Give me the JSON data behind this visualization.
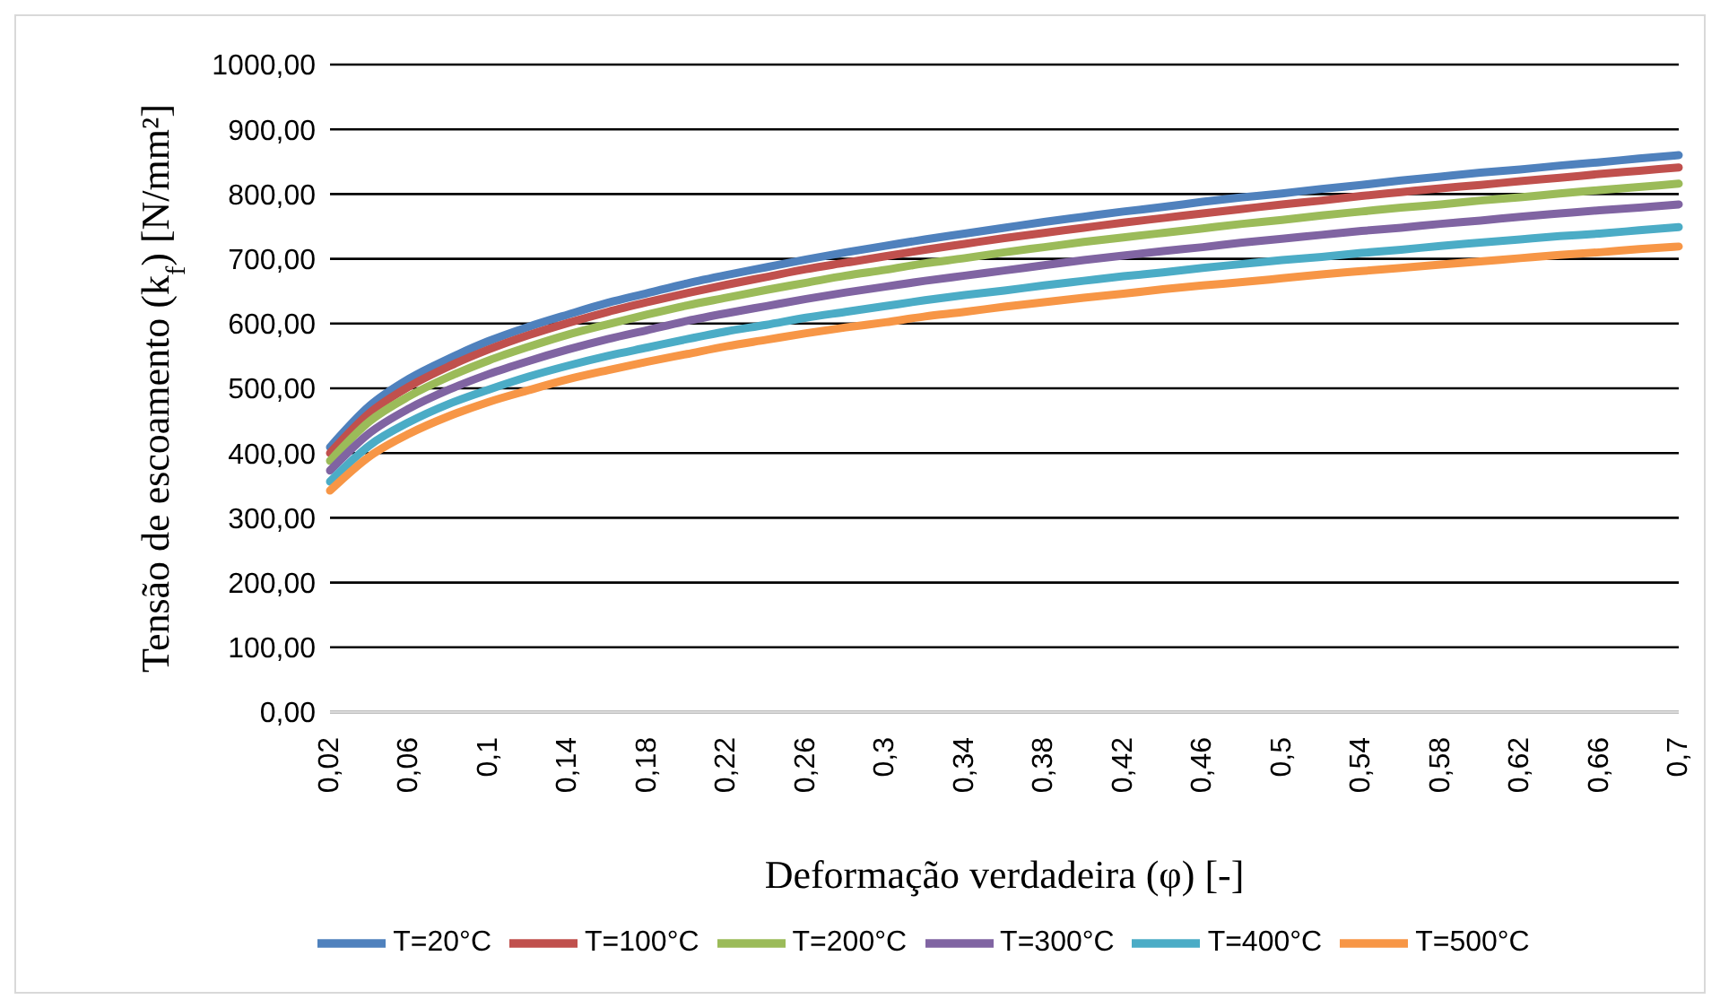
{
  "chart_data": {
    "type": "line",
    "xlabel": "Deformação verdadeira (φ) [-]",
    "ylabel": "Tensão de escoamento (k$_{f}$) [N/mm²]",
    "categories": [
      "0,02",
      null,
      "0,06",
      null,
      "0,1",
      null,
      "0,14",
      null,
      "0,18",
      null,
      "0,22",
      null,
      "0,26",
      null,
      "0,3",
      null,
      "0,34",
      null,
      "0,38",
      null,
      "0,42",
      null,
      "0,46",
      null,
      "0,5",
      null,
      "0,54",
      null,
      "0,58",
      null,
      "0,62",
      null,
      "0,66",
      null,
      "0,7"
    ],
    "series": [
      {
        "name": "T=20°C",
        "color": "#4f81bd",
        "values": [
          409,
          473,
          515,
          546,
          573,
          595,
          614,
          632,
          647,
          662,
          675,
          687,
          699,
          710,
          720,
          730,
          739,
          748,
          757,
          765,
          773,
          780,
          788,
          795,
          801,
          808,
          814,
          821,
          827,
          833,
          838,
          844,
          849,
          855,
          860
        ]
      },
      {
        "name": "T=100°C",
        "color": "#c0504d",
        "values": [
          400,
          462,
          503,
          534,
          560,
          582,
          601,
          618,
          633,
          647,
          660,
          672,
          684,
          694,
          704,
          714,
          723,
          732,
          740,
          748,
          756,
          763,
          770,
          777,
          784,
          790,
          797,
          803,
          809,
          814,
          820,
          825,
          831,
          836,
          841
        ]
      },
      {
        "name": "T=200°C",
        "color": "#9bbb59",
        "values": [
          388,
          449,
          488,
          518,
          543,
          564,
          583,
          599,
          614,
          628,
          640,
          652,
          663,
          674,
          683,
          693,
          701,
          710,
          718,
          726,
          733,
          740,
          747,
          754,
          760,
          767,
          773,
          779,
          784,
          790,
          795,
          801,
          806,
          811,
          816
        ]
      },
      {
        "name": "T=300°C",
        "color": "#8064a2",
        "values": [
          373,
          431,
          469,
          498,
          522,
          542,
          560,
          576,
          590,
          604,
          616,
          627,
          638,
          648,
          657,
          666,
          674,
          682,
          690,
          698,
          705,
          712,
          718,
          725,
          731,
          737,
          743,
          748,
          754,
          759,
          765,
          770,
          775,
          779,
          784
        ]
      },
      {
        "name": "T=400°C",
        "color": "#4bacc6",
        "values": [
          356,
          412,
          448,
          476,
          498,
          518,
          535,
          550,
          563,
          576,
          588,
          598,
          609,
          618,
          627,
          636,
          644,
          651,
          659,
          666,
          673,
          679,
          686,
          692,
          698,
          703,
          709,
          714,
          720,
          725,
          730,
          735,
          739,
          744,
          749
        ]
      },
      {
        "name": "T=500°C",
        "color": "#f79646",
        "values": [
          342,
          395,
          430,
          457,
          479,
          497,
          514,
          528,
          541,
          553,
          565,
          575,
          585,
          594,
          602,
          611,
          618,
          626,
          633,
          640,
          646,
          653,
          659,
          664,
          670,
          676,
          681,
          686,
          691,
          696,
          701,
          706,
          710,
          715,
          719
        ]
      }
    ],
    "ylim": [
      0,
      1000
    ],
    "yticks": [
      {
        "value": 0,
        "label": "0,00"
      },
      {
        "value": 100,
        "label": "100,00"
      },
      {
        "value": 200,
        "label": "200,00"
      },
      {
        "value": 300,
        "label": "300,00"
      },
      {
        "value": 400,
        "label": "400,00"
      },
      {
        "value": 500,
        "label": "500,00"
      },
      {
        "value": 600,
        "label": "600,00"
      },
      {
        "value": 700,
        "label": "700,00"
      },
      {
        "value": 800,
        "label": "800,00"
      },
      {
        "value": 900,
        "label": "900,00"
      },
      {
        "value": 1000,
        "label": "1000,00"
      }
    ],
    "grid": "y",
    "legend": "bottom",
    "marker": "none",
    "line_style": "solid"
  }
}
